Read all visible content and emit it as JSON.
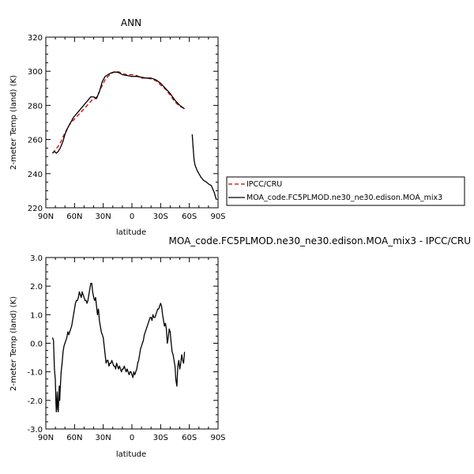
{
  "chart_data": [
    {
      "type": "line",
      "title": "ANN",
      "xlabel": "latitude",
      "ylabel": "2-meter Temp (land) (K)",
      "xlim": [
        90,
        -90
      ],
      "ylim": [
        220,
        320
      ],
      "x_ticks": [
        90,
        60,
        30,
        0,
        -30,
        -60,
        -90
      ],
      "x_tick_labels": [
        "90N",
        "60N",
        "30N",
        "0",
        "30S",
        "60S",
        "90S"
      ],
      "y_ticks": [
        220,
        240,
        260,
        280,
        300,
        320
      ],
      "y_tick_labels": [
        "220",
        "240",
        "260",
        "280",
        "300",
        "320"
      ],
      "legend_position": "right",
      "series": [
        {
          "name": "IPCC/CRU",
          "color": "#cc0000",
          "dash": "dashed",
          "x": [
            83,
            80,
            77,
            74,
            70,
            65,
            60,
            55,
            50,
            45,
            42,
            40,
            38,
            35,
            30,
            27,
            25,
            22,
            19,
            16,
            13,
            10,
            5,
            0,
            -5,
            -10,
            -15,
            -20,
            -25,
            -30,
            -35,
            -40,
            -45,
            -50,
            -55
          ],
          "y": [
            252,
            254,
            256,
            259,
            264,
            269,
            272,
            275,
            278,
            281,
            283,
            284,
            284,
            287,
            293,
            296,
            297,
            298.5,
            299.5,
            300,
            299.5,
            298.5,
            298,
            298,
            297.5,
            296,
            296,
            295.5,
            294.5,
            292,
            289.5,
            286,
            282,
            279.5,
            278
          ]
        },
        {
          "name": "MOA_code.FC5PLMOD.ne30_ne30.edison.MOA_mix3",
          "color": "#000000",
          "dash": "solid",
          "segments": [
            {
              "x": [
                83,
                81,
                79,
                77,
                75,
                72,
                70,
                67,
                64,
                61,
                58,
                55,
                52,
                49,
                46,
                43,
                40,
                37,
                34,
                31,
                28,
                25,
                22,
                19,
                16,
                13,
                10,
                5,
                0,
                -5,
                -10,
                -15,
                -20,
                -25,
                -30,
                -35,
                -40,
                -45,
                -50,
                -55
              ],
              "y": [
                252,
                253,
                252,
                253,
                255,
                259,
                263,
                267,
                270,
                273,
                275,
                277,
                279,
                281,
                283,
                285,
                285,
                284,
                288,
                294,
                297,
                298,
                299,
                299.5,
                299.5,
                299,
                298,
                297.5,
                297,
                297,
                296.5,
                296,
                296,
                295,
                293,
                290,
                287,
                283,
                280,
                278
              ]
            },
            {
              "x": [
                -63,
                -64,
                -65,
                -66,
                -68,
                -70,
                -72,
                -75,
                -78,
                -80,
                -83,
                -86,
                -88
              ],
              "y": [
                263,
                255,
                248,
                245,
                242,
                240,
                238,
                236,
                235,
                234,
                233,
                229,
                225
              ]
            }
          ]
        }
      ]
    },
    {
      "type": "line",
      "title": "MOA_code.FC5PLMOD.ne30_ne30.edison.MOA_mix3 - IPCC/CRU",
      "xlabel": "latitude",
      "ylabel": "2-meter Temp (land) (K)",
      "xlim": [
        90,
        -90
      ],
      "ylim": [
        -3.0,
        3.0
      ],
      "x_ticks": [
        90,
        60,
        30,
        0,
        -30,
        -60,
        -90
      ],
      "x_tick_labels": [
        "90N",
        "60N",
        "30N",
        "0",
        "30S",
        "60S",
        "90S"
      ],
      "y_ticks": [
        -3.0,
        -2.0,
        -1.0,
        0.0,
        1.0,
        2.0,
        3.0
      ],
      "y_tick_labels": [
        "-3.0",
        "-2.0",
        "-1.0",
        "0.0",
        "1.0",
        "2.0",
        "3.0"
      ],
      "series": [
        {
          "name": "",
          "color": "#000000",
          "dash": "solid",
          "x": [
            83,
            82,
            81,
            80,
            79.5,
            79,
            78,
            77.5,
            77,
            76,
            75.5,
            75,
            74,
            73,
            72,
            71,
            70,
            69,
            68,
            67,
            66,
            65,
            64,
            63,
            62,
            61,
            60,
            59,
            58,
            57,
            56,
            55,
            54,
            53,
            52,
            51,
            50,
            49,
            48,
            47,
            46,
            45,
            44,
            43,
            42,
            41,
            40,
            39,
            38,
            37,
            36,
            35,
            34,
            33,
            32,
            31,
            30,
            29,
            28,
            27,
            26,
            25,
            24,
            23,
            22,
            21,
            20,
            19,
            18,
            17,
            16,
            15,
            14,
            13,
            12,
            11,
            10,
            9,
            8,
            7,
            6,
            5,
            4,
            3,
            2,
            1,
            0,
            -1,
            -2,
            -3,
            -4,
            -5,
            -6,
            -7,
            -8,
            -9,
            -10,
            -11,
            -12,
            -13,
            -14,
            -15,
            -16,
            -17,
            -18,
            -19,
            -20,
            -21,
            -22,
            -23,
            -24,
            -25,
            -26,
            -27,
            -28,
            -29,
            -30,
            -31,
            -32,
            -33,
            -34,
            -35,
            -36,
            -37,
            -38,
            -39,
            -40,
            -41,
            -42,
            -43,
            -44,
            -45,
            -46,
            -47,
            -48,
            -49,
            -50,
            -51,
            -52,
            -53,
            -54,
            -55
          ],
          "y": [
            0.2,
            0.1,
            -0.9,
            -1.3,
            -2.0,
            -2.4,
            -1.7,
            -2.3,
            -2.4,
            -1.5,
            -2.0,
            -1.6,
            -1.0,
            -0.7,
            -0.3,
            -0.1,
            0.0,
            0.1,
            0.2,
            0.4,
            0.3,
            0.4,
            0.5,
            0.6,
            0.8,
            1.0,
            1.2,
            1.4,
            1.5,
            1.5,
            1.6,
            1.8,
            1.7,
            1.6,
            1.8,
            1.7,
            1.6,
            1.5,
            1.5,
            1.4,
            1.5,
            1.7,
            1.9,
            2.1,
            2.1,
            1.8,
            1.6,
            1.5,
            1.6,
            1.3,
            1.0,
            1.2,
            0.8,
            0.6,
            0.4,
            0.3,
            0.2,
            -0.1,
            -0.4,
            -0.7,
            -0.6,
            -0.6,
            -0.8,
            -0.7,
            -0.7,
            -0.6,
            -0.7,
            -0.8,
            -0.8,
            -0.9,
            -0.7,
            -0.8,
            -0.9,
            -0.8,
            -0.9,
            -1.0,
            -0.9,
            -0.9,
            -0.8,
            -0.9,
            -1.0,
            -0.9,
            -1.0,
            -1.1,
            -1.0,
            -1.0,
            -1.1,
            -1.2,
            -1.0,
            -1.1,
            -1.0,
            -0.9,
            -0.7,
            -0.6,
            -0.4,
            -0.2,
            -0.1,
            0.0,
            0.1,
            0.3,
            0.4,
            0.5,
            0.6,
            0.7,
            0.8,
            0.9,
            0.9,
            0.8,
            1.0,
            0.9,
            0.9,
            1.0,
            1.1,
            1.2,
            1.2,
            1.3,
            1.4,
            1.3,
            1.0,
            0.8,
            0.6,
            0.7,
            0.5,
            0.0,
            0.2,
            0.5,
            0.4,
            0.0,
            -0.3,
            -0.4,
            -0.6,
            -0.8,
            -1.3,
            -1.5,
            -0.8,
            -0.6,
            -0.9,
            -0.7,
            -0.4,
            -0.6,
            -0.7,
            -0.3
          ]
        }
      ]
    }
  ]
}
